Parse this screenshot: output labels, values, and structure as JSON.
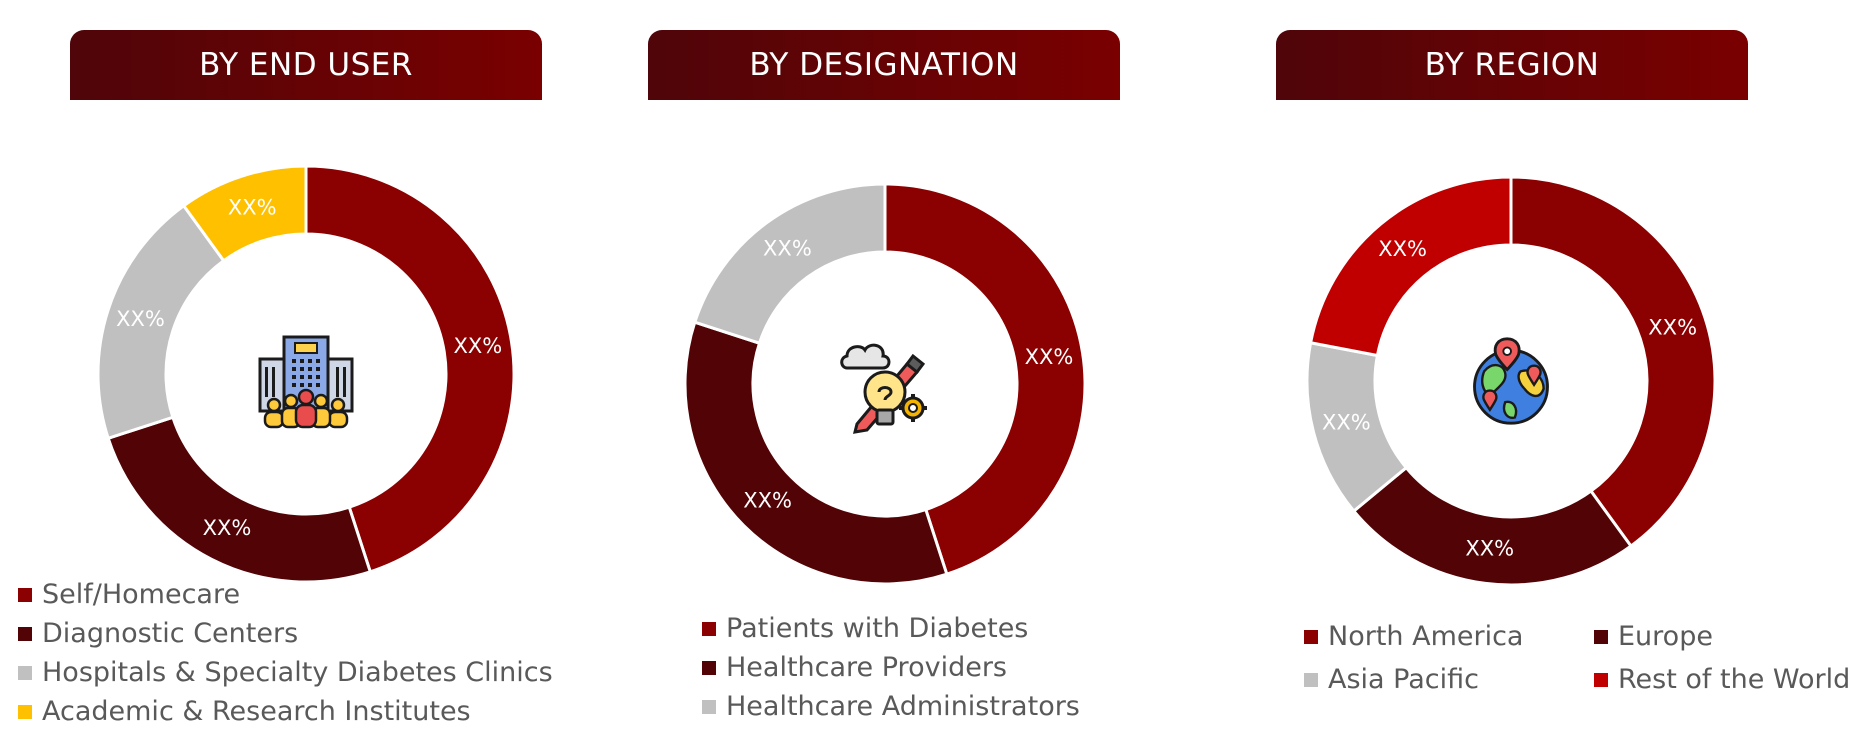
{
  "colors": {
    "dark_red": "#8b0000",
    "maroon": "#520306",
    "grey": "#c0c0c0",
    "yellow": "#ffc000",
    "bright_red": "#c00000",
    "header_start": "#4f0509",
    "header_end": "#7a0000",
    "text": "#595959"
  },
  "icons": [
    "building-people-icon",
    "idea-tools-icon",
    "globe-pins-icon"
  ],
  "chart_data": [
    {
      "type": "pie",
      "title": "BY END USER",
      "donut": true,
      "categories": [
        "Self/Homecare",
        "Diagnostic Centers",
        "Hospitals & Specialty Diabetes Clinics",
        "Academic & Research Institutes"
      ],
      "values": [
        45,
        25,
        20,
        10
      ],
      "labels": [
        "XX%",
        "XX%",
        "XX%",
        "XX%"
      ],
      "colors": [
        "#8b0000",
        "#520306",
        "#c0c0c0",
        "#ffc000"
      ],
      "legend_placement": "bottom-left"
    },
    {
      "type": "pie",
      "title": "BY DESIGNATION",
      "donut": true,
      "categories": [
        "Patients with Diabetes",
        "Healthcare Providers",
        "Healthcare Administrators"
      ],
      "values": [
        45,
        35,
        20
      ],
      "labels": [
        "XX%",
        "XX%",
        "XX%"
      ],
      "colors": [
        "#8b0000",
        "#520306",
        "#c0c0c0"
      ],
      "legend_placement": "bottom"
    },
    {
      "type": "pie",
      "title": "BY REGION",
      "donut": true,
      "categories": [
        "North America",
        "Europe",
        "Asia Pacific",
        "Rest of the World"
      ],
      "values": [
        40,
        24,
        14,
        22
      ],
      "labels": [
        "XX%",
        "XX%",
        "XX%",
        "XX%"
      ],
      "colors": [
        "#8b0000",
        "#520306",
        "#c0c0c0",
        "#c00000"
      ],
      "legend_placement": "bottom"
    }
  ]
}
